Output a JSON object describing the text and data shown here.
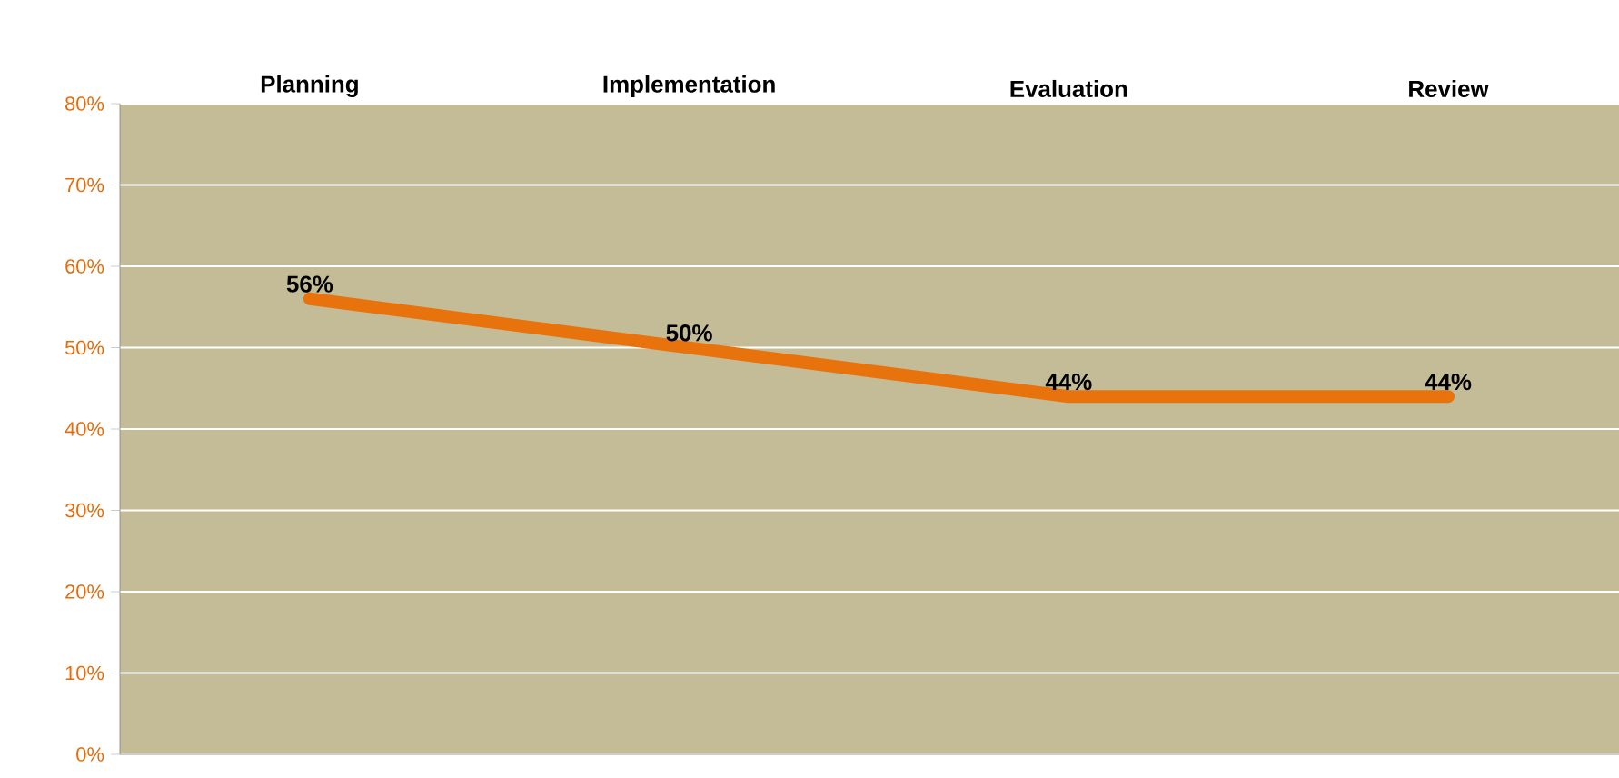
{
  "chart_data": {
    "type": "line",
    "categories": [
      "Planning",
      "Implementation",
      "Evaluation",
      "Review"
    ],
    "series": [
      {
        "color": "#e8730c",
        "values": [
          56,
          50,
          44,
          44
        ],
        "value_labels": [
          "56%",
          "50%",
          "44%",
          "44%"
        ]
      }
    ],
    "ylim": [
      0,
      80
    ],
    "yticks": [
      {
        "value": 0,
        "label": "0%"
      },
      {
        "value": 10,
        "label": "10%"
      },
      {
        "value": 20,
        "label": "20%"
      },
      {
        "value": 30,
        "label": "30%"
      },
      {
        "value": 40,
        "label": "40%"
      },
      {
        "value": 50,
        "label": "50%"
      },
      {
        "value": 60,
        "label": "60%"
      },
      {
        "value": 70,
        "label": "70%"
      },
      {
        "value": 80,
        "label": "80%"
      }
    ],
    "grid": "y",
    "marker": "none",
    "line_style": "solid"
  }
}
